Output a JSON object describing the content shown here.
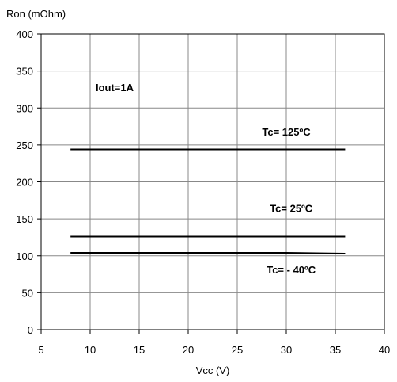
{
  "chart_data": {
    "type": "line",
    "ylabel": "Ron (mOhm)",
    "xlabel": "Vcc (V)",
    "xlim": [
      5,
      40
    ],
    "ylim": [
      0,
      400
    ],
    "xticks": [
      5,
      10,
      15,
      20,
      25,
      30,
      35,
      40
    ],
    "yticks": [
      0,
      50,
      100,
      150,
      200,
      250,
      300,
      350,
      400
    ],
    "grid": true,
    "series": [
      {
        "name": "Tc= 125ºC",
        "x": [
          8,
          36
        ],
        "y": [
          244,
          244
        ]
      },
      {
        "name": "Tc= 25ºC",
        "x": [
          8,
          36
        ],
        "y": [
          126,
          126
        ]
      },
      {
        "name": "Tc= - 40ºC",
        "x": [
          8,
          30,
          36
        ],
        "y": [
          104,
          104,
          103
        ]
      }
    ],
    "annotations": [
      {
        "text": "Iout=1A",
        "x": 12.5,
        "y": 323
      },
      {
        "text": "Tc= 125ºC",
        "x": 30,
        "y": 263
      },
      {
        "text": "Tc= 25ºC",
        "x": 30.5,
        "y": 159
      },
      {
        "text": "Tc= - 40ºC",
        "x": 30.5,
        "y": 76
      }
    ]
  }
}
